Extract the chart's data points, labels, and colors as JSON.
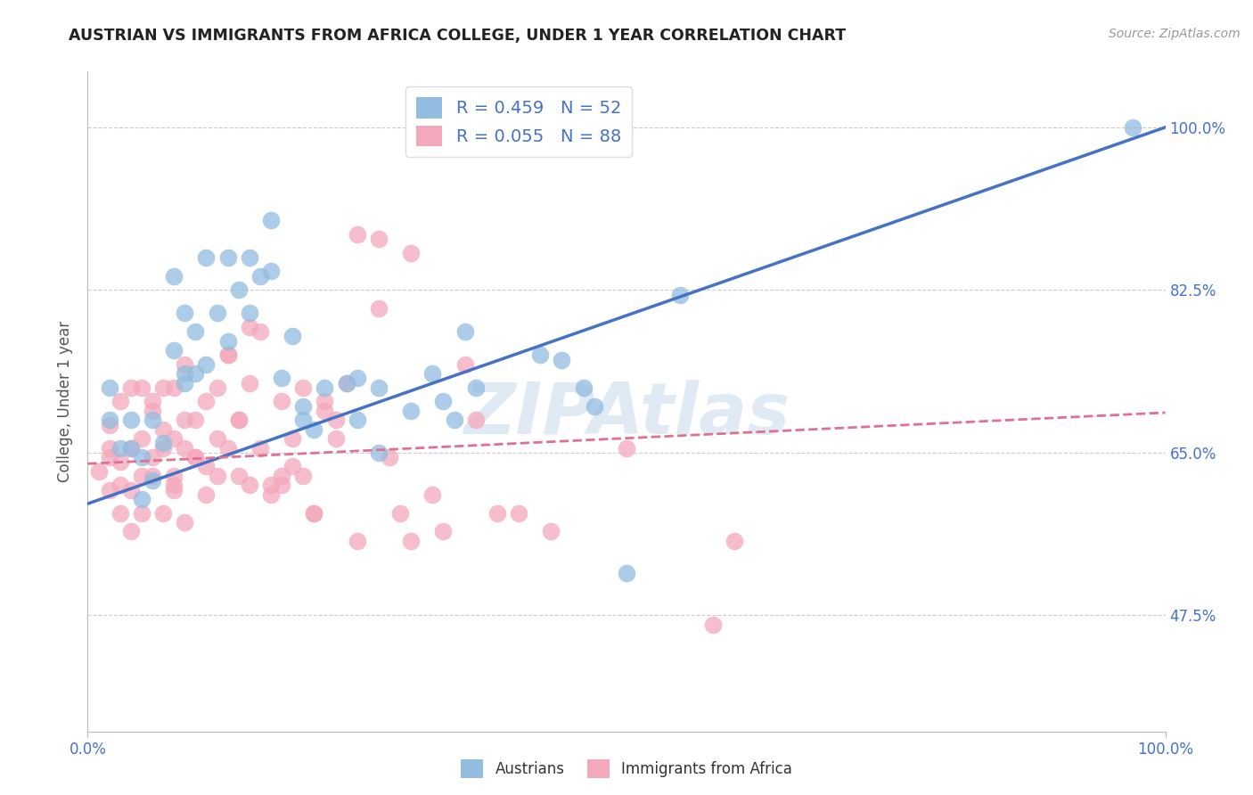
{
  "title": "AUSTRIAN VS IMMIGRANTS FROM AFRICA COLLEGE, UNDER 1 YEAR CORRELATION CHART",
  "source": "Source: ZipAtlas.com",
  "ylabel": "College, Under 1 year",
  "legend_austrians": "Austrians",
  "legend_immigrants": "Immigrants from Africa",
  "R_austrians": 0.459,
  "N_austrians": 52,
  "R_immigrants": 0.055,
  "N_immigrants": 88,
  "blue_color": "#92bce0",
  "pink_color": "#f4a8bb",
  "blue_line_color": "#4472c4",
  "pink_line_color": "#e07090",
  "legend_text_color": "#4472c4",
  "axis_tick_color": "#4472c4",
  "title_color": "#222222",
  "grid_color": "#cccccc",
  "watermark_color": "#ccdded",
  "x_min": 0.0,
  "x_max": 1.0,
  "y_min": 0.35,
  "y_max": 1.06,
  "y_ticks": [
    0.475,
    0.65,
    0.825,
    1.0
  ],
  "y_tick_labels": [
    "47.5%",
    "65.0%",
    "82.5%",
    "100.0%"
  ],
  "x_ticks": [
    0.0,
    1.0
  ],
  "x_tick_labels": [
    "0.0%",
    "100.0%"
  ],
  "blue_line_x0": 0.0,
  "blue_line_y0": 0.595,
  "blue_line_x1": 1.0,
  "blue_line_y1": 1.0,
  "pink_line_x0": 0.0,
  "pink_line_y0": 0.638,
  "pink_line_x1": 1.0,
  "pink_line_y1": 0.693,
  "blue_scatter_x": [
    0.02,
    0.02,
    0.03,
    0.04,
    0.05,
    0.05,
    0.06,
    0.07,
    0.08,
    0.08,
    0.09,
    0.09,
    0.1,
    0.1,
    0.11,
    0.11,
    0.12,
    0.13,
    0.14,
    0.15,
    0.15,
    0.16,
    0.17,
    0.17,
    0.18,
    0.19,
    0.2,
    0.21,
    0.22,
    0.24,
    0.25,
    0.27,
    0.3,
    0.32,
    0.33,
    0.34,
    0.35,
    0.42,
    0.44,
    0.46,
    0.47,
    0.5,
    0.55,
    0.97,
    0.04,
    0.06,
    0.09,
    0.13,
    0.2,
    0.25,
    0.27,
    0.36
  ],
  "blue_scatter_y": [
    0.685,
    0.72,
    0.655,
    0.685,
    0.645,
    0.6,
    0.62,
    0.66,
    0.76,
    0.84,
    0.725,
    0.8,
    0.735,
    0.78,
    0.745,
    0.86,
    0.8,
    0.77,
    0.825,
    0.8,
    0.86,
    0.84,
    0.845,
    0.9,
    0.73,
    0.775,
    0.7,
    0.675,
    0.72,
    0.725,
    0.73,
    0.65,
    0.695,
    0.735,
    0.705,
    0.685,
    0.78,
    0.755,
    0.75,
    0.72,
    0.7,
    0.52,
    0.82,
    1.0,
    0.655,
    0.685,
    0.735,
    0.86,
    0.685,
    0.685,
    0.72,
    0.72
  ],
  "pink_scatter_x": [
    0.01,
    0.02,
    0.02,
    0.02,
    0.03,
    0.03,
    0.03,
    0.04,
    0.04,
    0.04,
    0.05,
    0.05,
    0.05,
    0.06,
    0.06,
    0.06,
    0.07,
    0.07,
    0.07,
    0.08,
    0.08,
    0.08,
    0.09,
    0.09,
    0.09,
    0.1,
    0.1,
    0.11,
    0.11,
    0.12,
    0.12,
    0.13,
    0.13,
    0.14,
    0.14,
    0.15,
    0.15,
    0.16,
    0.17,
    0.18,
    0.18,
    0.19,
    0.2,
    0.2,
    0.21,
    0.22,
    0.23,
    0.24,
    0.25,
    0.27,
    0.28,
    0.29,
    0.3,
    0.32,
    0.33,
    0.36,
    0.38,
    0.4,
    0.43,
    0.5,
    0.58,
    0.6,
    0.27,
    0.3,
    0.35,
    0.25,
    0.13,
    0.16,
    0.14,
    0.21,
    0.22,
    0.19,
    0.23,
    0.17,
    0.1,
    0.09,
    0.08,
    0.07,
    0.06,
    0.05,
    0.04,
    0.03,
    0.02,
    0.08,
    0.11,
    0.12,
    0.15,
    0.18
  ],
  "pink_scatter_y": [
    0.63,
    0.655,
    0.68,
    0.61,
    0.64,
    0.705,
    0.585,
    0.655,
    0.72,
    0.61,
    0.665,
    0.72,
    0.585,
    0.645,
    0.705,
    0.625,
    0.655,
    0.72,
    0.585,
    0.665,
    0.72,
    0.61,
    0.655,
    0.745,
    0.575,
    0.685,
    0.645,
    0.705,
    0.605,
    0.665,
    0.72,
    0.655,
    0.755,
    0.685,
    0.625,
    0.725,
    0.785,
    0.655,
    0.605,
    0.705,
    0.625,
    0.665,
    0.72,
    0.625,
    0.585,
    0.705,
    0.665,
    0.725,
    0.555,
    0.805,
    0.645,
    0.585,
    0.555,
    0.605,
    0.565,
    0.685,
    0.585,
    0.585,
    0.565,
    0.655,
    0.465,
    0.555,
    0.88,
    0.865,
    0.745,
    0.885,
    0.755,
    0.78,
    0.685,
    0.585,
    0.695,
    0.635,
    0.685,
    0.615,
    0.645,
    0.685,
    0.625,
    0.675,
    0.695,
    0.625,
    0.565,
    0.615,
    0.645,
    0.615,
    0.635,
    0.625,
    0.615,
    0.615
  ]
}
